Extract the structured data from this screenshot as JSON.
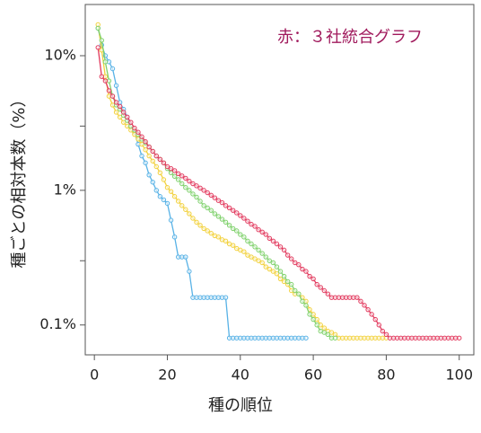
{
  "chart_data": {
    "type": "line",
    "annotation": "赤：３社統合グラフ",
    "xlabel": "種の順位",
    "ylabel": "種ごとの相対本数（%）",
    "log_y": true,
    "xlim": [
      -2.5,
      104
    ],
    "xticks": [
      0,
      20,
      40,
      60,
      80,
      100
    ],
    "ylim": [
      0.06,
      24
    ],
    "yticks": [
      {
        "value": 0.1,
        "label": "0.1%"
      },
      {
        "value": 1,
        "label": "1%"
      },
      {
        "value": 10,
        "label": "10%"
      }
    ],
    "yminorticks": [
      0.3,
      3
    ],
    "x": [
      1,
      2,
      3,
      4,
      5,
      6,
      7,
      8,
      9,
      10,
      11,
      12,
      13,
      14,
      15,
      16,
      17,
      18,
      19,
      20,
      21,
      22,
      23,
      24,
      25,
      26,
      27,
      28,
      29,
      30,
      31,
      32,
      33,
      34,
      35,
      36,
      37,
      38,
      39,
      40,
      41,
      42,
      43,
      44,
      45,
      46,
      47,
      48,
      49,
      50,
      51,
      52,
      53,
      54,
      55,
      56,
      57,
      58,
      59,
      60,
      61,
      62,
      63,
      64,
      65,
      66,
      67,
      68,
      69,
      70,
      71,
      72,
      73,
      74,
      75,
      76,
      77,
      78,
      79,
      80,
      81,
      82,
      83,
      84,
      85,
      86,
      87,
      88,
      89,
      90,
      91,
      92,
      93,
      94,
      95,
      96,
      97,
      98,
      99,
      100
    ],
    "series": [
      {
        "color": "#e23a5e",
        "values": [
          11.5,
          7,
          6.5,
          5.5,
          5,
          4.5,
          4.2,
          3.8,
          3.5,
          3.2,
          2.9,
          2.7,
          2.5,
          2.3,
          2.1,
          1.95,
          1.8,
          1.7,
          1.6,
          1.5,
          1.45,
          1.4,
          1.33,
          1.28,
          1.23,
          1.17,
          1.12,
          1.08,
          1.04,
          1.0,
          0.96,
          0.92,
          0.88,
          0.84,
          0.81,
          0.77,
          0.74,
          0.71,
          0.68,
          0.65,
          0.62,
          0.59,
          0.56,
          0.54,
          0.51,
          0.49,
          0.47,
          0.44,
          0.42,
          0.4,
          0.38,
          0.36,
          0.33,
          0.31,
          0.29,
          0.28,
          0.26,
          0.25,
          0.23,
          0.22,
          0.2,
          0.19,
          0.18,
          0.17,
          0.16,
          0.16,
          0.16,
          0.16,
          0.16,
          0.16,
          0.16,
          0.16,
          0.15,
          0.14,
          0.13,
          0.12,
          0.11,
          0.1,
          0.09,
          0.085,
          0.08,
          0.08,
          0.08,
          0.08,
          0.08,
          0.08,
          0.08,
          0.08,
          0.08,
          0.08,
          0.08,
          0.08,
          0.08,
          0.08,
          0.08,
          0.08,
          0.08,
          0.08,
          0.08,
          0.08
        ]
      },
      {
        "color": "#7fd16c",
        "values": [
          16,
          13,
          9,
          6.5,
          5,
          4.3,
          4,
          3.6,
          3.3,
          3,
          2.8,
          2.6,
          2.4,
          2.25,
          2.1,
          1.95,
          1.8,
          1.7,
          1.6,
          1.45,
          1.35,
          1.27,
          1.2,
          1.12,
          1.05,
          1.0,
          0.94,
          0.89,
          0.83,
          0.77,
          0.74,
          0.71,
          0.67,
          0.64,
          0.61,
          0.58,
          0.55,
          0.52,
          0.5,
          0.47,
          0.45,
          0.42,
          0.4,
          0.38,
          0.36,
          0.34,
          0.32,
          0.3,
          0.29,
          0.27,
          0.25,
          0.23,
          0.21,
          0.2,
          0.18,
          0.17,
          0.15,
          0.14,
          0.12,
          0.11,
          0.1,
          0.09,
          0.088,
          0.085,
          0.08,
          0.08,
          null,
          null,
          null,
          null,
          null,
          null,
          null,
          null,
          null,
          null,
          null,
          null,
          null,
          null,
          null,
          null,
          null,
          null,
          null,
          null,
          null,
          null,
          null,
          null,
          null,
          null,
          null,
          null,
          null,
          null,
          null,
          null,
          null,
          null
        ]
      },
      {
        "color": "#f2d13c",
        "values": [
          17,
          11,
          7,
          5,
          4.3,
          3.8,
          3.5,
          3.2,
          3,
          2.8,
          2.6,
          2.4,
          2.2,
          2.0,
          1.8,
          1.65,
          1.5,
          1.35,
          1.2,
          1.05,
          0.98,
          0.9,
          0.83,
          0.77,
          0.72,
          0.67,
          0.62,
          0.58,
          0.55,
          0.52,
          0.5,
          0.48,
          0.46,
          0.45,
          0.43,
          0.42,
          0.4,
          0.39,
          0.37,
          0.36,
          0.35,
          0.33,
          0.32,
          0.31,
          0.3,
          0.29,
          0.27,
          0.26,
          0.25,
          0.24,
          0.22,
          0.21,
          0.2,
          0.18,
          0.17,
          0.17,
          0.16,
          0.15,
          0.13,
          0.12,
          0.11,
          0.1,
          0.095,
          0.09,
          0.088,
          0.085,
          0.08,
          0.08,
          0.08,
          0.08,
          0.08,
          0.08,
          0.08,
          0.08,
          0.08,
          0.08,
          0.08,
          0.08,
          0.08,
          0.08,
          null,
          null,
          null,
          null,
          null,
          null,
          null,
          null,
          null,
          null,
          null,
          null,
          null,
          null,
          null,
          null,
          null,
          null,
          null,
          null
        ]
      },
      {
        "color": "#58b2e6",
        "values": [
          16,
          12,
          10,
          9,
          8,
          6,
          4.5,
          4,
          3.5,
          3,
          2.7,
          2.2,
          1.8,
          1.6,
          1.3,
          1.15,
          1.0,
          0.9,
          0.85,
          0.8,
          0.6,
          0.45,
          0.32,
          0.32,
          0.32,
          0.25,
          0.16,
          0.16,
          0.16,
          0.16,
          0.16,
          0.16,
          0.16,
          0.16,
          0.16,
          0.16,
          0.08,
          0.08,
          0.08,
          0.08,
          0.08,
          0.08,
          0.08,
          0.08,
          0.08,
          0.08,
          0.08,
          0.08,
          0.08,
          0.08,
          0.08,
          0.08,
          0.08,
          0.08,
          0.08,
          0.08,
          0.08,
          0.08,
          null,
          null,
          null,
          null,
          null,
          null,
          null,
          null,
          null,
          null,
          null,
          null,
          null,
          null,
          null,
          null,
          null,
          null,
          null,
          null,
          null,
          null,
          null,
          null,
          null,
          null,
          null,
          null,
          null,
          null,
          null,
          null,
          null,
          null,
          null,
          null,
          null,
          null,
          null,
          null,
          null,
          null
        ]
      }
    ]
  }
}
